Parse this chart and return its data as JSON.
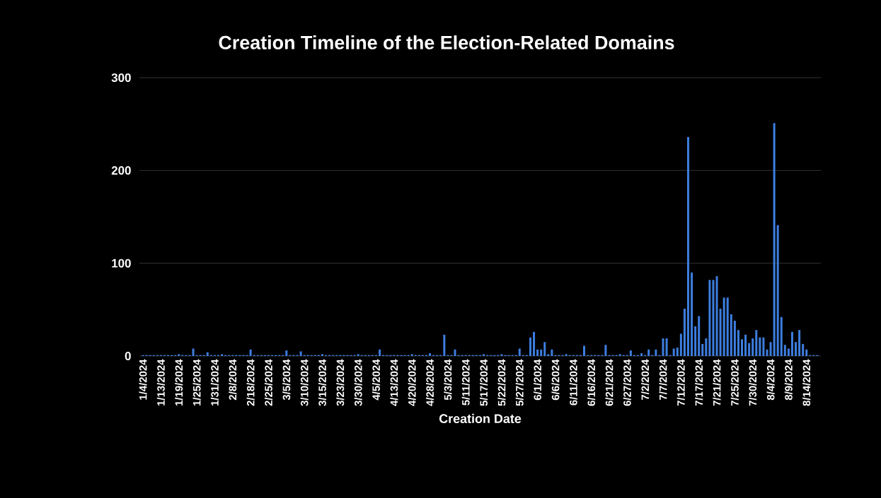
{
  "chart_data": {
    "type": "bar",
    "title": "Creation Timeline of the Election-Related Domains",
    "xlabel": "Creation Date",
    "categories": [
      "1/4/2024",
      null,
      null,
      null,
      null,
      "1/13/2024",
      null,
      null,
      null,
      null,
      "1/19/2024",
      null,
      null,
      null,
      null,
      "1/25/2024",
      null,
      null,
      null,
      null,
      "1/31/2024",
      null,
      null,
      null,
      null,
      "2/8/2024",
      null,
      null,
      null,
      null,
      "2/18/2024",
      null,
      null,
      null,
      null,
      "2/25/2024",
      null,
      null,
      null,
      null,
      "3/5/2024",
      null,
      null,
      null,
      null,
      "3/10/2024",
      null,
      null,
      null,
      null,
      "3/15/2024",
      null,
      null,
      null,
      null,
      "3/23/2024",
      null,
      null,
      null,
      null,
      "3/30/2024",
      null,
      null,
      null,
      null,
      "4/5/2024",
      null,
      null,
      null,
      null,
      "4/13/2024",
      null,
      null,
      null,
      null,
      "4/20/2024",
      null,
      null,
      null,
      null,
      "4/28/2024",
      null,
      null,
      null,
      null,
      "5/3/2024",
      null,
      null,
      null,
      null,
      "5/11/2024",
      null,
      null,
      null,
      null,
      "5/17/2024",
      null,
      null,
      null,
      null,
      "5/22/2024",
      null,
      null,
      null,
      null,
      "5/27/2024",
      null,
      null,
      null,
      null,
      "6/1/2024",
      null,
      null,
      null,
      null,
      "6/6/2024",
      null,
      null,
      null,
      null,
      "6/11/2024",
      null,
      null,
      null,
      null,
      "6/16/2024",
      null,
      null,
      null,
      null,
      "6/21/2024",
      null,
      null,
      null,
      null,
      "6/27/2024",
      null,
      null,
      null,
      null,
      "7/2/2024",
      null,
      null,
      null,
      null,
      "7/7/2024",
      null,
      null,
      null,
      null,
      "7/12/2024",
      null,
      null,
      null,
      null,
      "7/17/2024",
      null,
      null,
      null,
      null,
      "7/21/2024",
      null,
      null,
      null,
      null,
      "7/25/2024",
      null,
      null,
      null,
      null,
      "7/30/2024",
      null,
      null,
      null,
      null,
      "8/4/2024",
      null,
      null,
      null,
      null,
      "8/9/2024",
      null,
      null,
      null,
      null,
      "8/14/2024",
      null,
      null,
      null
    ],
    "values": [
      1,
      1,
      1,
      1,
      1,
      1,
      1,
      1,
      1,
      1,
      2,
      1,
      1,
      1,
      8,
      1,
      1,
      1,
      4,
      1,
      1,
      1,
      2,
      1,
      1,
      1,
      1,
      1,
      1,
      1,
      7,
      1,
      1,
      1,
      1,
      1,
      1,
      1,
      1,
      1,
      6,
      1,
      1,
      1,
      5,
      1,
      1,
      1,
      1,
      1,
      2,
      1,
      1,
      1,
      1,
      1,
      1,
      1,
      1,
      1,
      2,
      1,
      1,
      1,
      1,
      1,
      7,
      1,
      1,
      1,
      1,
      1,
      1,
      1,
      1,
      2,
      1,
      1,
      1,
      1,
      3,
      1,
      1,
      1,
      23,
      1,
      1,
      7,
      1,
      1,
      1,
      1,
      1,
      1,
      1,
      2,
      1,
      1,
      1,
      1,
      2,
      1,
      1,
      1,
      1,
      8,
      1,
      1,
      20,
      26,
      7,
      7,
      15,
      2,
      7,
      1,
      1,
      1,
      2,
      1,
      1,
      1,
      1,
      11,
      1,
      1,
      1,
      1,
      1,
      12,
      1,
      1,
      1,
      2,
      1,
      1,
      6,
      1,
      1,
      3,
      1,
      7,
      1,
      7,
      1,
      19,
      19,
      1,
      8,
      9,
      24,
      51,
      236,
      90,
      32,
      43,
      13,
      19,
      82,
      82,
      86,
      51,
      63,
      63,
      45,
      38,
      28,
      18,
      23,
      14,
      19,
      28,
      20,
      20,
      7,
      15,
      251,
      141,
      42,
      12,
      8,
      26,
      15,
      28,
      13,
      7,
      1,
      1,
      1
    ],
    "color": "#3d7ee0",
    "ylim": [
      0,
      300
    ],
    "yticks": [
      0,
      100,
      200,
      300
    ],
    "grid": "y"
  }
}
